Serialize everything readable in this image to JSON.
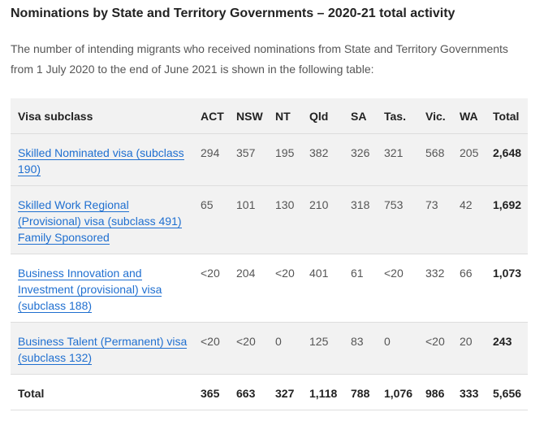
{
  "title": "Nominations by State and Territory Governments – 2020-21 total activity",
  "intro": "The number of intending migrants who received nominations from State and Territory Governments from 1 July 2020 to the end of June 2021 is shown in the following table:",
  "table": {
    "headers": [
      "Visa subclass",
      "ACT",
      "NSW",
      "NT",
      "Qld",
      "SA",
      "Tas.",
      "Vic.",
      "WA",
      "Total"
    ],
    "rows": [
      {
        "visa": "Skilled Nominated visa (subclass 190)",
        "values": [
          "294",
          "357",
          "195",
          "382",
          "326",
          "321",
          "568",
          "205",
          "2,648"
        ]
      },
      {
        "visa": "Skilled Work Regional (Provisional) visa (subclass 491) Family Sponsored",
        "values": [
          "65",
          "101",
          "130",
          "210",
          "318",
          "753",
          "73",
          "42",
          "1,692"
        ]
      },
      {
        "visa": "Business Innovation and Investment (provisional) visa (subclass 188)",
        "values": [
          "<20",
          "204",
          "<20",
          "401",
          "61",
          "<20",
          "332",
          "66",
          "1,073"
        ]
      },
      {
        "visa": "Business Talent (Permanent) visa (subclass 132)",
        "values": [
          "<20",
          "<20",
          "0",
          "125",
          "83",
          "0",
          "<20",
          "20",
          "243"
        ]
      }
    ],
    "total": {
      "label": "Total",
      "values": [
        "365",
        "663",
        "327",
        "1,118",
        "788",
        "1,076",
        "986",
        "333",
        "5,656"
      ]
    }
  }
}
